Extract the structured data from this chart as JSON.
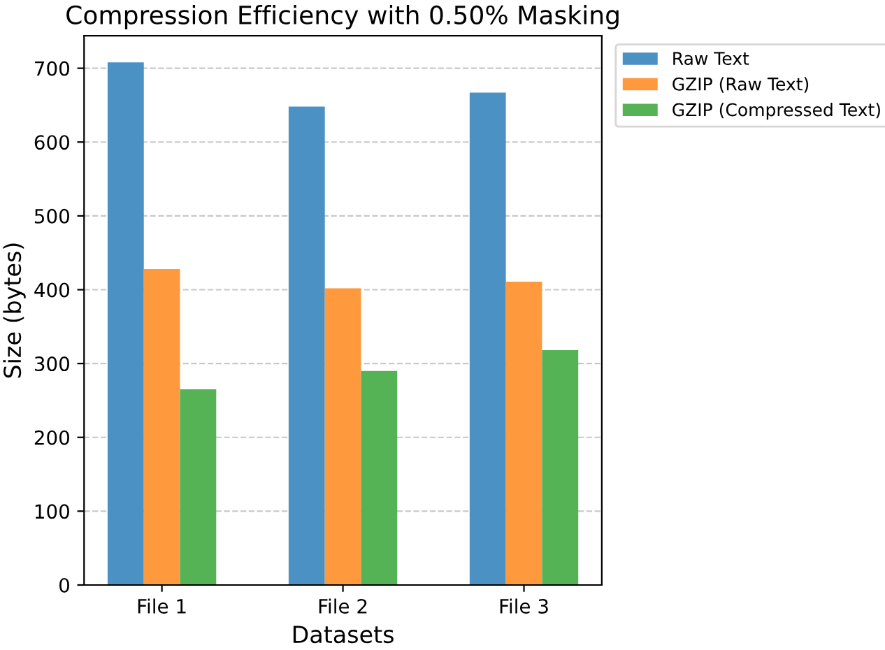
{
  "chart_data": {
    "type": "bar",
    "title": "Compression Efficiency with 0.50% Masking",
    "xlabel": "Datasets",
    "ylabel": "Size (bytes)",
    "categories": [
      "File 1",
      "File 2",
      "File 3"
    ],
    "series": [
      {
        "name": "Raw Text",
        "color": "#4b91c3",
        "values": [
          708,
          648,
          667
        ]
      },
      {
        "name": "GZIP (Raw Text)",
        "color": "#fe993e",
        "values": [
          428,
          402,
          411
        ]
      },
      {
        "name": "GZIP (Compressed Text)",
        "color": "#55b255",
        "values": [
          265,
          290,
          318
        ]
      }
    ],
    "ylim": [
      0,
      744
    ],
    "yticks": [
      0,
      100,
      200,
      300,
      400,
      500,
      600,
      700
    ],
    "grid": "y",
    "legend": "right"
  }
}
